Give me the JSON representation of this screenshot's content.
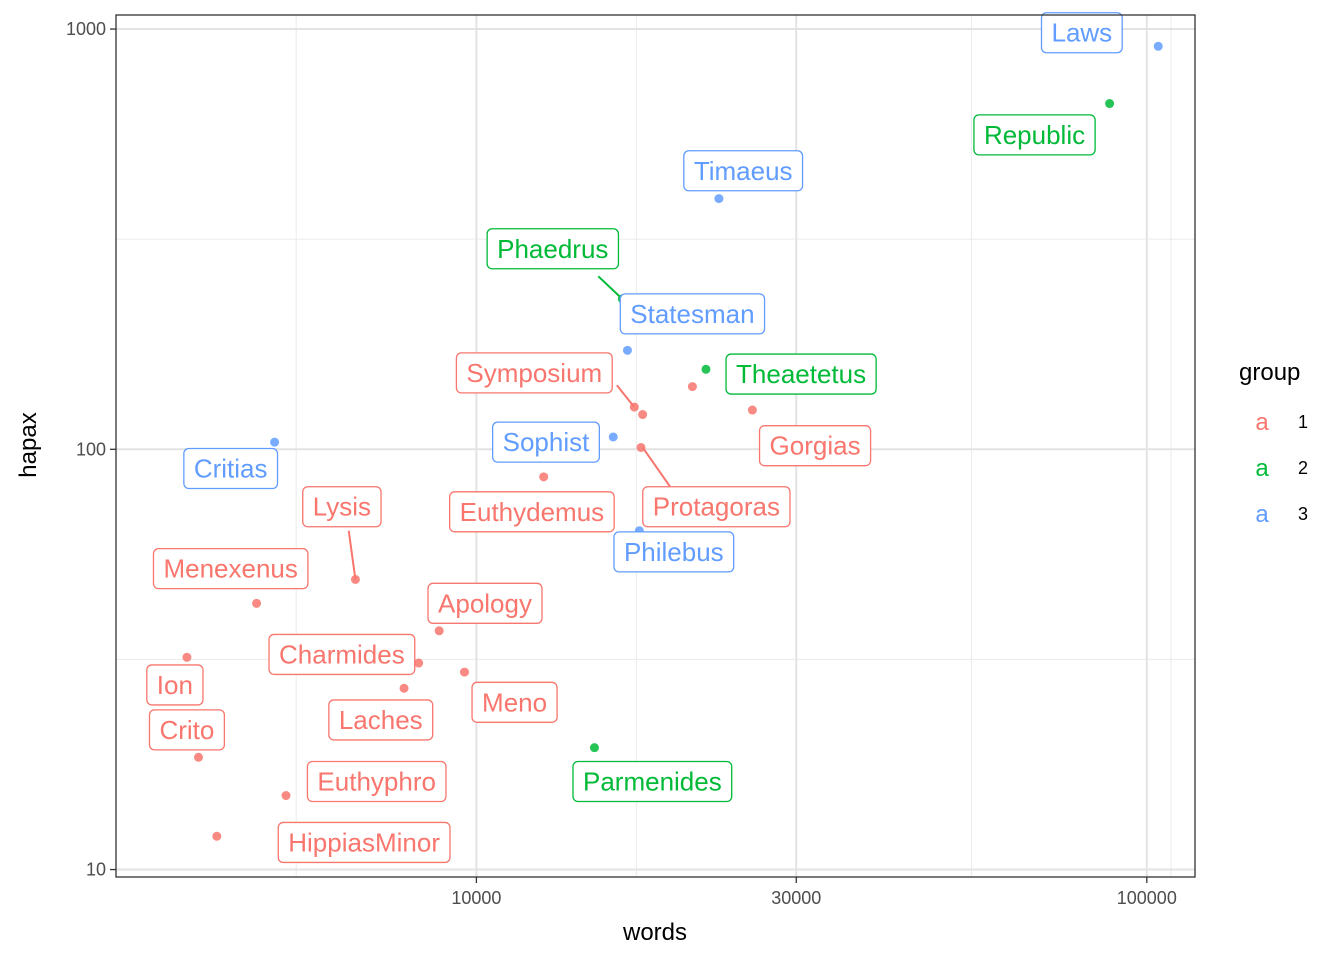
{
  "chart_data": {
    "type": "scatter",
    "xlabel": "words",
    "ylabel": "hapax",
    "x_scale": "log10",
    "y_scale": "log10",
    "xlim": [
      2900,
      118000
    ],
    "ylim": [
      9.6,
      1080
    ],
    "x_ticks": [
      10000,
      30000,
      100000
    ],
    "x_tick_labels": [
      "10000",
      "30000",
      "100000"
    ],
    "y_ticks": [
      10,
      100,
      1000
    ],
    "y_tick_labels": [
      "10",
      "100",
      "1000"
    ],
    "grid": true,
    "legend": {
      "title": "group",
      "position": "right",
      "key_glyph": "a",
      "entries": [
        {
          "label": "1",
          "color": "#F8766D"
        },
        {
          "label": "2",
          "color": "#00BA38"
        },
        {
          "label": "3",
          "color": "#619CFF"
        }
      ]
    },
    "colors": {
      "1": "#F8766D",
      "2": "#00BA38",
      "3": "#619CFF"
    },
    "points": [
      {
        "label": "Laws",
        "group": "3",
        "x": 104000,
        "y": 910
      },
      {
        "label": "Republic",
        "group": "2",
        "x": 88000,
        "y": 665
      },
      {
        "label": "Timaeus",
        "group": "3",
        "x": 23000,
        "y": 395
      },
      {
        "label": "Phaedrus",
        "group": "2",
        "x": 16500,
        "y": 228
      },
      {
        "label": "Statesman",
        "group": "3",
        "x": 16800,
        "y": 172
      },
      {
        "label": "Theaetetus",
        "group": "2",
        "x": 22000,
        "y": 155
      },
      {
        "label": "Symposium",
        "group": "1",
        "x": 17200,
        "y": 126
      },
      {
        "label": "Gorgias",
        "group": "1",
        "x": 25800,
        "y": 124
      },
      {
        "label": "Protagoras",
        "group": "1",
        "x": 17700,
        "y": 121
      },
      {
        "label": "Theaetetus",
        "group": "1",
        "x": 21000,
        "y": 141
      },
      {
        "label": "Sophist",
        "group": "3",
        "x": 16000,
        "y": 107
      },
      {
        "label": "Critias",
        "group": "3",
        "x": 5000,
        "y": 104
      },
      {
        "label": "Protagoras",
        "group": "1",
        "x": 17600,
        "y": 101
      },
      {
        "label": "Euthydemus",
        "group": "1",
        "x": 12600,
        "y": 86
      },
      {
        "label": "Philebus",
        "group": "3",
        "x": 17500,
        "y": 64
      },
      {
        "label": "Lysis",
        "group": "1",
        "x": 6600,
        "y": 49
      },
      {
        "label": "Menexenus",
        "group": "1",
        "x": 4700,
        "y": 43
      },
      {
        "label": "Apology",
        "group": "1",
        "x": 8800,
        "y": 37
      },
      {
        "label": "Ion",
        "group": "1",
        "x": 3700,
        "y": 32
      },
      {
        "label": "Charmides",
        "group": "1",
        "x": 8200,
        "y": 31
      },
      {
        "label": "Meno",
        "group": "1",
        "x": 9600,
        "y": 29.5
      },
      {
        "label": "Laches",
        "group": "1",
        "x": 7800,
        "y": 27
      },
      {
        "label": "Parmenides",
        "group": "2",
        "x": 15000,
        "y": 19.5
      },
      {
        "label": "Crito",
        "group": "1",
        "x": 3850,
        "y": 18.5
      },
      {
        "label": "Euthyphro",
        "group": "1",
        "x": 5200,
        "y": 15
      },
      {
        "label": "HippiasMinor",
        "group": "1",
        "x": 4100,
        "y": 12
      }
    ],
    "labels": [
      {
        "text": "Laws",
        "group": "3",
        "x": 80000,
        "y": 980
      },
      {
        "text": "Republic",
        "group": "2",
        "x": 68000,
        "y": 560
      },
      {
        "text": "Timaeus",
        "group": "3",
        "x": 25000,
        "y": 460
      },
      {
        "text": "Phaedrus",
        "group": "2",
        "x": 13000,
        "y": 300
      },
      {
        "text": "Statesman",
        "group": "3",
        "x": 21000,
        "y": 210
      },
      {
        "text": "Theaetetus",
        "group": "2",
        "x": 30500,
        "y": 151
      },
      {
        "text": "Symposium",
        "group": "1",
        "x": 12200,
        "y": 152
      },
      {
        "text": "Gorgias",
        "group": "1",
        "x": 32000,
        "y": 102
      },
      {
        "text": "Sophist",
        "group": "3",
        "x": 12700,
        "y": 104
      },
      {
        "text": "Critias",
        "group": "3",
        "x": 4300,
        "y": 90
      },
      {
        "text": "Euthydemus",
        "group": "1",
        "x": 12100,
        "y": 71
      },
      {
        "text": "Protagoras",
        "group": "1",
        "x": 22800,
        "y": 73
      },
      {
        "text": "Philebus",
        "group": "3",
        "x": 19700,
        "y": 57
      },
      {
        "text": "Lysis",
        "group": "1",
        "x": 6300,
        "y": 73
      },
      {
        "text": "Menexenus",
        "group": "1",
        "x": 4300,
        "y": 52
      },
      {
        "text": "Apology",
        "group": "1",
        "x": 10300,
        "y": 43
      },
      {
        "text": "Charmides",
        "group": "1",
        "x": 6300,
        "y": 32.5
      },
      {
        "text": "Ion",
        "group": "1",
        "x": 3550,
        "y": 27.5
      },
      {
        "text": "Meno",
        "group": "1",
        "x": 11400,
        "y": 25
      },
      {
        "text": "Laches",
        "group": "1",
        "x": 7200,
        "y": 22.7
      },
      {
        "text": "Crito",
        "group": "1",
        "x": 3700,
        "y": 21.5
      },
      {
        "text": "Parmenides",
        "group": "2",
        "x": 18300,
        "y": 16.2
      },
      {
        "text": "Euthyphro",
        "group": "1",
        "x": 7100,
        "y": 16.2
      },
      {
        "text": "HippiasMinor",
        "group": "1",
        "x": 6800,
        "y": 11.6
      }
    ],
    "connectors": [
      {
        "group": "2",
        "from": [
          16500,
          228
        ],
        "to": [
          15200,
          258
        ]
      },
      {
        "group": "1",
        "from": [
          17200,
          126
        ],
        "to": [
          16200,
          142
        ]
      },
      {
        "group": "1",
        "from": [
          17700,
          101
        ],
        "to": [
          19500,
          81
        ]
      },
      {
        "group": "1",
        "from": [
          6600,
          49
        ],
        "to": [
          6450,
          64
        ]
      }
    ]
  }
}
